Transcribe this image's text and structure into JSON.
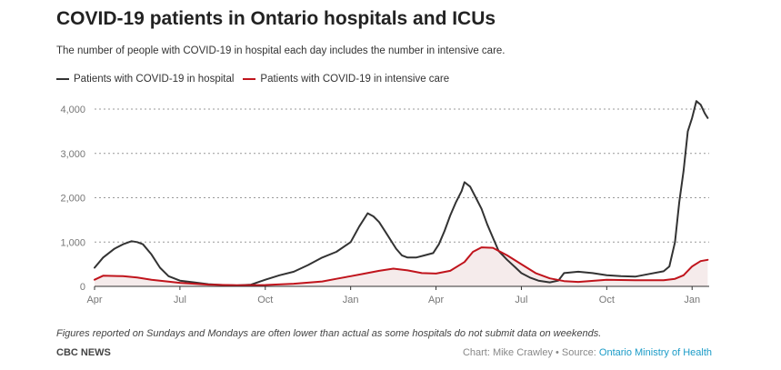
{
  "header": {
    "title": "COVID-19 patients in Ontario hospitals and ICUs",
    "subtitle": "The number of people with COVID-19 in hospital each day includes the number in intensive care."
  },
  "footer": {
    "note": "Figures reported on Sundays and Mondays are often lower than actual as some hospitals do not submit data on weekends.",
    "brand": "CBC NEWS",
    "credit_prefix": "Chart: Mike Crawley • Source: ",
    "source_link": "Ontario Ministry of Health"
  },
  "colors": {
    "hospital": "#333333",
    "icu": "#c0141c",
    "grid": "#999999",
    "link": "#1a9bc7"
  },
  "chart_data": {
    "type": "line",
    "title": "COVID-19 patients in Ontario hospitals and ICUs",
    "xlabel": "",
    "ylabel": "",
    "ylim": [
      0,
      4000
    ],
    "xlim": [
      0,
      21.6
    ],
    "x_unit": "months since Apr 2020",
    "yticks": [
      0,
      1000,
      2000,
      3000,
      4000
    ],
    "ytick_labels": [
      "0",
      "1,000",
      "2,000",
      "3,000",
      "4,000"
    ],
    "xticks": [
      0,
      3,
      6,
      9,
      12,
      15,
      18,
      21
    ],
    "xtick_labels": [
      "Apr",
      "Jul",
      "Oct",
      "Jan",
      "Apr",
      "Jul",
      "Oct",
      "Jan"
    ],
    "legend_position": "top-left",
    "grid": true,
    "series": [
      {
        "name": "Patients with COVID-19 in hospital",
        "color": "#333333",
        "x": [
          0,
          0.3,
          0.7,
          1.0,
          1.3,
          1.5,
          1.7,
          2.0,
          2.3,
          2.6,
          3.0,
          3.5,
          4.0,
          4.5,
          5.0,
          5.5,
          6.0,
          6.5,
          7.0,
          7.5,
          8.0,
          8.5,
          9.0,
          9.3,
          9.6,
          9.8,
          10.0,
          10.3,
          10.6,
          10.8,
          11.0,
          11.3,
          11.6,
          11.9,
          12.1,
          12.3,
          12.5,
          12.7,
          12.9,
          13.0,
          13.2,
          13.4,
          13.6,
          13.8,
          14.0,
          14.2,
          14.5,
          14.8,
          15.0,
          15.3,
          15.6,
          16.0,
          16.3,
          16.5,
          17.0,
          17.5,
          18.0,
          18.5,
          19.0,
          19.5,
          20.0,
          20.2,
          20.4,
          20.55,
          20.7,
          20.85,
          21.0,
          21.15,
          21.3,
          21.45,
          21.55
        ],
        "values": [
          420,
          650,
          850,
          950,
          1020,
          1000,
          950,
          720,
          420,
          230,
          130,
          90,
          50,
          30,
          20,
          40,
          150,
          250,
          330,
          480,
          650,
          780,
          1000,
          1350,
          1650,
          1580,
          1450,
          1150,
          850,
          700,
          650,
          650,
          700,
          750,
          950,
          1250,
          1600,
          1900,
          2150,
          2350,
          2250,
          2000,
          1750,
          1400,
          1100,
          800,
          600,
          420,
          300,
          200,
          130,
          90,
          130,
          300,
          330,
          300,
          250,
          230,
          220,
          280,
          340,
          450,
          1000,
          1900,
          2600,
          3500,
          3800,
          4180,
          4100,
          3900,
          3800
        ]
      },
      {
        "name": "Patients with COVID-19 in intensive care",
        "color": "#c0141c",
        "x": [
          0,
          0.3,
          1.0,
          1.5,
          2.0,
          3.0,
          4.0,
          5.0,
          6.0,
          7.0,
          8.0,
          8.5,
          9.0,
          9.5,
          10.0,
          10.5,
          11.0,
          11.5,
          12.0,
          12.5,
          13.0,
          13.3,
          13.6,
          14.0,
          14.5,
          15.0,
          15.5,
          16.0,
          16.5,
          17.0,
          18.0,
          19.0,
          20.0,
          20.4,
          20.7,
          21.0,
          21.3,
          21.55
        ],
        "values": [
          150,
          240,
          230,
          200,
          150,
          80,
          40,
          25,
          30,
          60,
          110,
          170,
          230,
          290,
          350,
          400,
          360,
          300,
          290,
          350,
          550,
          780,
          880,
          870,
          700,
          500,
          300,
          180,
          120,
          100,
          150,
          140,
          140,
          170,
          250,
          450,
          570,
          600
        ]
      }
    ]
  }
}
